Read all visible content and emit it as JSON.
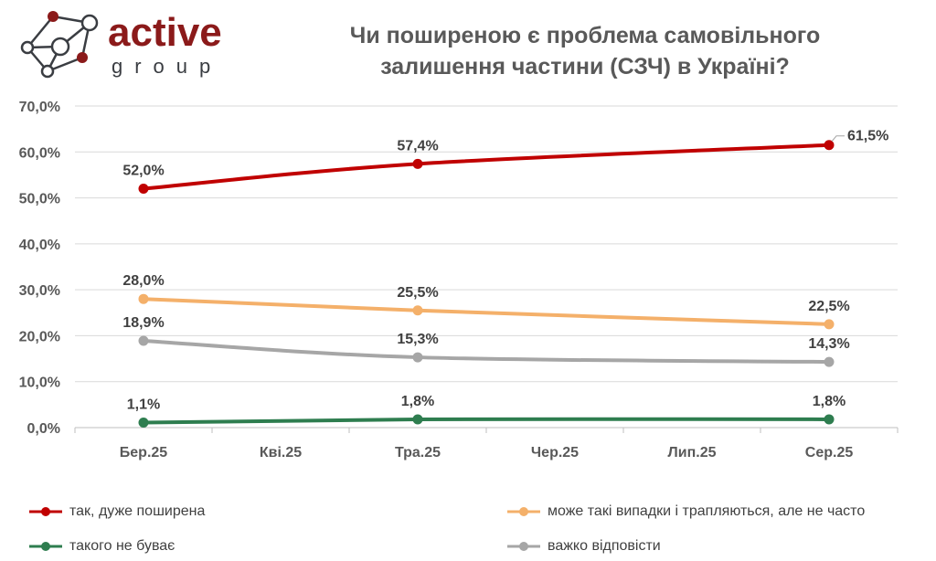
{
  "logo": {
    "text": "active",
    "subtext": "group"
  },
  "chart_data": {
    "type": "line",
    "title": "Чи поширеною є проблема самовільного залишення частини (СЗЧ) в Україні?",
    "title_lines": [
      "Чи поширеною є проблема самовільного",
      "залишення частини (СЗЧ) в Україні?"
    ],
    "categories": [
      "Бер.25",
      "Кві.25",
      "Тра.25",
      "Чер.25",
      "Лип.25",
      "Сер.25"
    ],
    "ylim": [
      0,
      70
    ],
    "yticks": [
      "0,0%",
      "10,0%",
      "20,0%",
      "30,0%",
      "40,0%",
      "50,0%",
      "60,0%",
      "70,0%"
    ],
    "grid": true,
    "legend_position": "bottom",
    "series": [
      {
        "name": "так, дуже поширена",
        "color": "#C00000",
        "values": [
          52.0,
          null,
          57.4,
          null,
          null,
          61.5
        ],
        "labels": [
          "52,0%",
          null,
          "57,4%",
          null,
          null,
          "61,5%"
        ]
      },
      {
        "name": "може такі випадки і трапляються, але не часто",
        "color": "#F4B06A",
        "values": [
          28.0,
          null,
          25.5,
          null,
          null,
          22.5
        ],
        "labels": [
          "28,0%",
          null,
          "25,5%",
          null,
          null,
          "22,5%"
        ]
      },
      {
        "name": "такого не буває",
        "color": "#2E7D4F",
        "values": [
          1.1,
          null,
          1.8,
          null,
          null,
          1.8
        ],
        "labels": [
          "1,1%",
          null,
          "1,8%",
          null,
          null,
          "1,8%"
        ]
      },
      {
        "name": "важко відповісти",
        "color": "#A6A6A6",
        "values": [
          18.9,
          null,
          15.3,
          null,
          null,
          14.3
        ],
        "labels": [
          "18,9%",
          null,
          "15,3%",
          null,
          null,
          "14,3%"
        ]
      }
    ]
  }
}
